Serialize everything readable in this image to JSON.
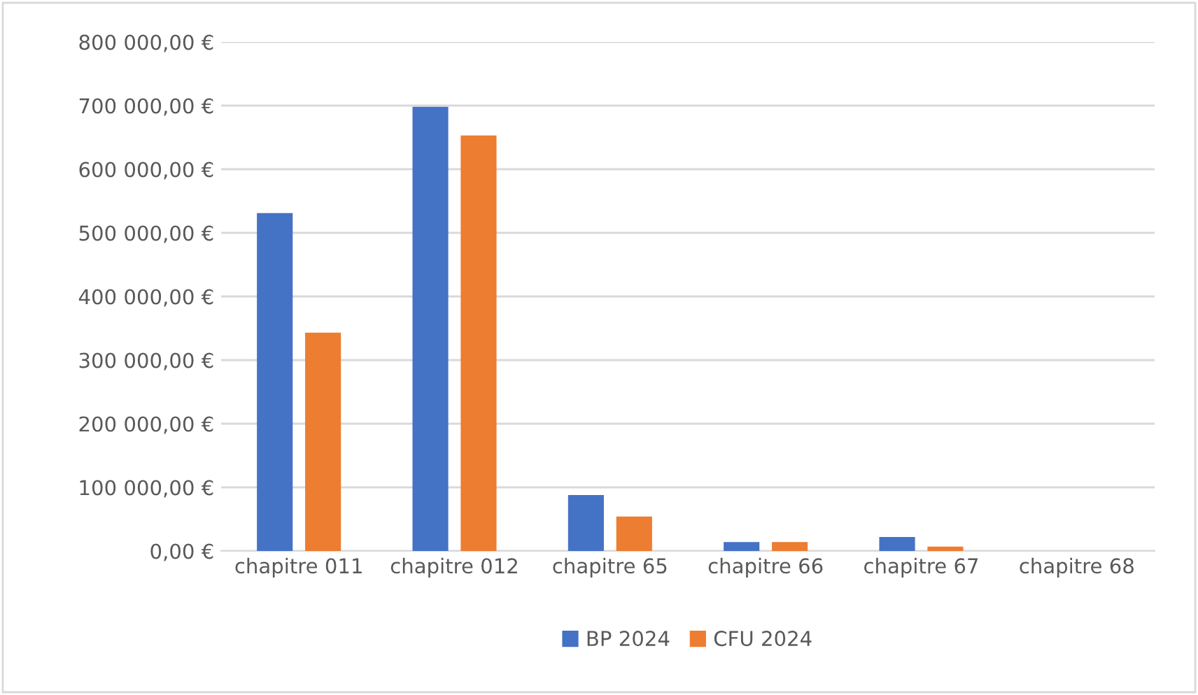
{
  "chart_data": {
    "type": "bar",
    "categories": [
      "chapitre 011",
      "chapitre 012",
      "chapitre 65",
      "chapitre 66",
      "chapitre 67",
      "chapitre 68"
    ],
    "series": [
      {
        "name": "BP 2024",
        "color": "#4472c4",
        "values": [
          531000,
          698000,
          88000,
          14000,
          22000,
          0
        ]
      },
      {
        "name": "CFU 2024",
        "color": "#ed7d31",
        "values": [
          343000,
          653000,
          54000,
          14000,
          7000,
          0
        ]
      }
    ],
    "ylim": [
      0,
      800000
    ],
    "yticks": [
      {
        "value": 0,
        "label": "0,00 €"
      },
      {
        "value": 100000,
        "label": "100 000,00 €"
      },
      {
        "value": 200000,
        "label": "200 000,00 €"
      },
      {
        "value": 300000,
        "label": "300 000,00 €"
      },
      {
        "value": 400000,
        "label": "400 000,00 €"
      },
      {
        "value": 500000,
        "label": "500 000,00 €"
      },
      {
        "value": 600000,
        "label": "600 000,00 €"
      },
      {
        "value": 700000,
        "label": "700 000,00 €"
      },
      {
        "value": 800000,
        "label": "800 000,00 €"
      }
    ],
    "grid": "y",
    "legend": "bottom"
  }
}
